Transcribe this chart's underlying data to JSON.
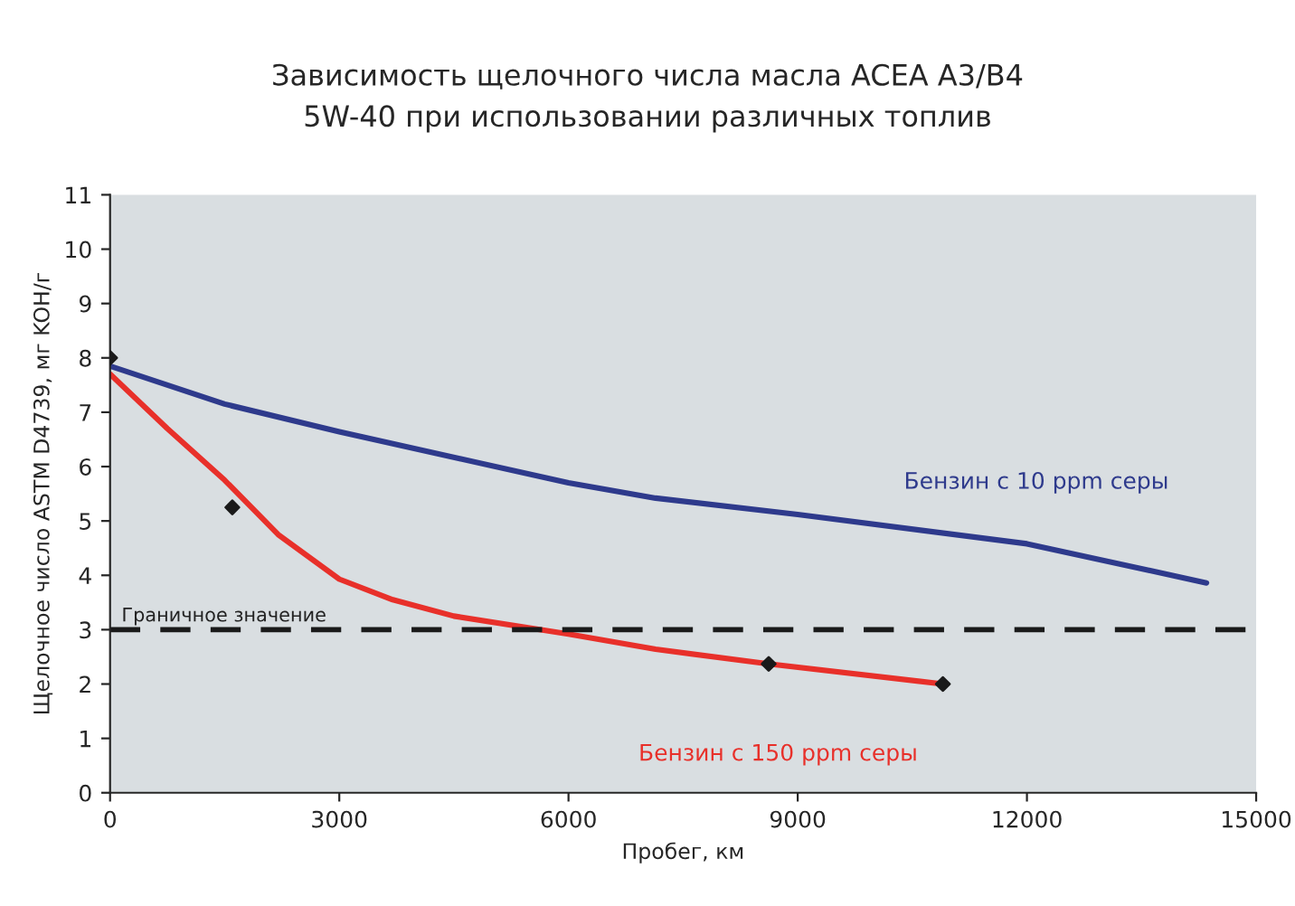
{
  "chart_data": {
    "type": "line",
    "title": "Зависимость щелочного числа масла ACEA A3/B4\n5W-40 при использовании различных топлив",
    "xlabel": "Пробег, км",
    "ylabel": "Щелочное число ASTM D4739, мг KOH/г",
    "series": [
      {
        "name": "Бензин с 10 ppm серы",
        "color": "#2e3a8c",
        "marker": "none",
        "x": [
          0,
          1500,
          3000,
          6000,
          7140,
          9000,
          12000,
          14350
        ],
        "values": [
          7.85,
          7.15,
          6.64,
          5.7,
          5.42,
          5.12,
          4.58,
          3.86
        ]
      },
      {
        "name": "Бензин с 150 ppm серы",
        "color": "#e8302a",
        "marker": "none",
        "x": [
          0,
          750,
          1500,
          2200,
          3000,
          3700,
          4500,
          6000,
          7140,
          8620,
          10900
        ],
        "values": [
          7.7,
          6.7,
          5.75,
          4.75,
          3.93,
          3.55,
          3.25,
          2.92,
          2.64,
          2.37,
          2.0
        ]
      },
      {
        "type": "scatter",
        "color": "#1a1a1a",
        "marker": "diamond",
        "x": [
          0,
          1600,
          8620,
          10900
        ],
        "values": [
          8.0,
          5.25,
          2.37,
          2.0
        ]
      }
    ],
    "xlim": [
      0,
      15000
    ],
    "xticks": [
      0,
      3000,
      6000,
      9000,
      12000,
      15000
    ],
    "ylim": [
      0,
      11
    ],
    "yticks": [
      0,
      1,
      2,
      3,
      4,
      5,
      6,
      7,
      8,
      9,
      10,
      11
    ],
    "ref_lines": [
      {
        "axis": "y",
        "value": 3,
        "label": "Граничное значение",
        "color": "#1a1a1a",
        "line_style": "dashed"
      }
    ],
    "grid": false,
    "legend": false
  }
}
